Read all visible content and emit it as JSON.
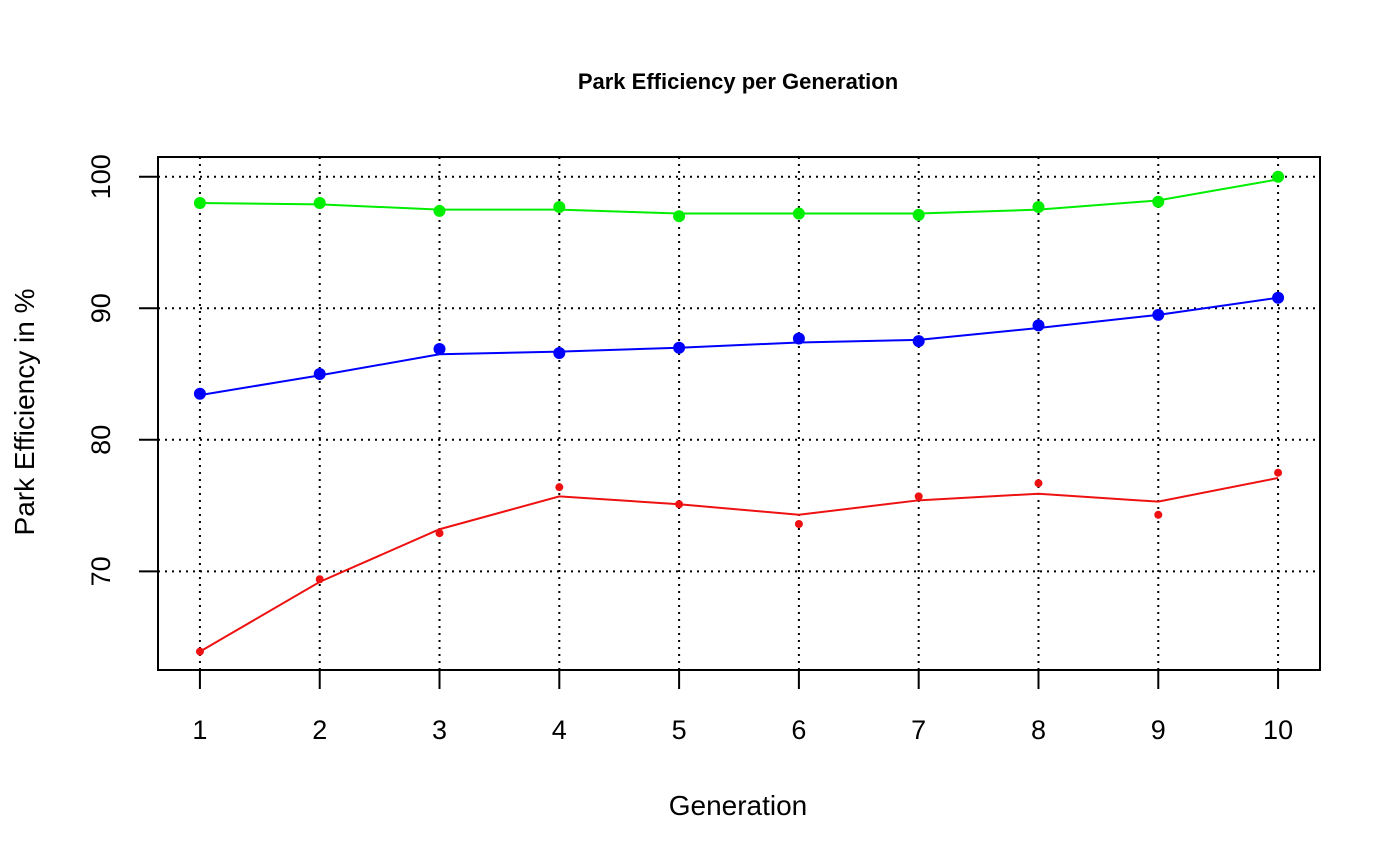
{
  "chart_data": {
    "type": "line",
    "title": "Park Efficiency per Generation",
    "xlabel": "Generation",
    "ylabel": "Park Efficiency in %",
    "x": [
      1,
      2,
      3,
      4,
      5,
      6,
      7,
      8,
      9,
      10
    ],
    "xlim": [
      0.65,
      10.35
    ],
    "ylim": [
      62.5,
      101.5
    ],
    "yticks": [
      70,
      80,
      90,
      100
    ],
    "grid": true,
    "legend": "none",
    "series": [
      {
        "color": "#00ee00",
        "points": [
          98.0,
          98.0,
          97.4,
          97.7,
          97.0,
          97.2,
          97.1,
          97.7,
          98.1,
          100.0
        ],
        "trend": [
          98.0,
          97.9,
          97.5,
          97.5,
          97.2,
          97.2,
          97.2,
          97.5,
          98.2,
          99.8
        ]
      },
      {
        "color": "#0000ff",
        "points": [
          83.5,
          85.0,
          86.9,
          86.6,
          87.0,
          87.7,
          87.5,
          88.7,
          89.5,
          90.8
        ],
        "trend": [
          83.4,
          84.9,
          86.5,
          86.7,
          87.0,
          87.4,
          87.6,
          88.5,
          89.5,
          90.8
        ]
      },
      {
        "color": "#ee1111",
        "points": [
          63.9,
          69.4,
          72.9,
          76.4,
          75.1,
          73.6,
          75.7,
          76.7,
          74.3,
          77.5
        ],
        "trend": [
          63.9,
          69.2,
          73.2,
          75.7,
          75.1,
          74.3,
          75.4,
          75.9,
          75.3,
          77.1
        ]
      }
    ]
  }
}
